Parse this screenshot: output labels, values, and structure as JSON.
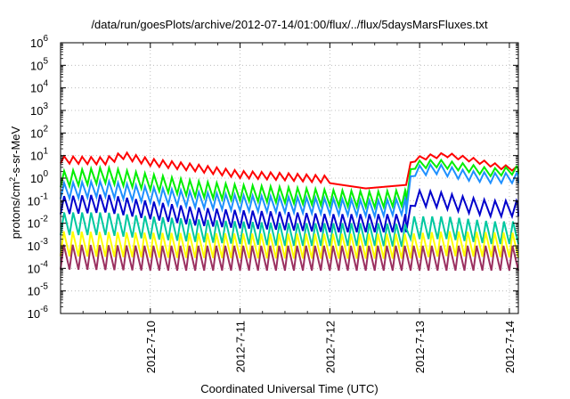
{
  "chart_data": {
    "type": "line",
    "title": "/data/run/goesPlots/archive/2012-07-14/01:00/flux/../flux/5daysMarsFluxes.txt",
    "xlabel": "Coordinated Universal Time (UTC)",
    "ylabel_main": "protons/cm",
    "ylabel_sup": "2",
    "ylabel_rest": "-s-sr-MeV",
    "yscale": "log",
    "ylim_exp": [
      -6,
      6
    ],
    "ytick_exps": [
      -6,
      -5,
      -4,
      -3,
      -2,
      -1,
      0,
      1,
      2,
      3,
      4,
      5,
      6
    ],
    "ytick_base": "10",
    "xlim_days": [
      9.0,
      14.1
    ],
    "xticks": [
      {
        "day": 10,
        "label": "2012-7-10"
      },
      {
        "day": 11,
        "label": "2012-7-11"
      },
      {
        "day": 12,
        "label": "2012-7-12"
      },
      {
        "day": 13,
        "label": "2012-7-13"
      },
      {
        "day": 14,
        "label": "2012-7-14"
      }
    ],
    "grid": true,
    "series": [
      {
        "color": "#ff0000",
        "width": 2,
        "points": [
          [
            9.0,
            4.5
          ],
          [
            9.5,
            4.0
          ],
          [
            9.7,
            7.0
          ],
          [
            10.0,
            3.5
          ],
          [
            10.5,
            2.0
          ],
          [
            11.0,
            1.0
          ],
          [
            11.5,
            0.8
          ],
          [
            12.0,
            0.6
          ],
          [
            12.4,
            0.35
          ],
          [
            12.85,
            0.5
          ],
          [
            12.9,
            5.0
          ],
          [
            13.1,
            7.0
          ],
          [
            13.3,
            8.5
          ],
          [
            13.6,
            5.0
          ],
          [
            13.9,
            2.5
          ],
          [
            14.1,
            2.0
          ]
        ],
        "saw": [
          [
            9.0,
            12.0,
            0.32,
            0.1,
            0.04
          ],
          [
            12.95,
            14.1,
            0.2,
            0.12,
            0.05
          ]
        ]
      },
      {
        "color": "#00ee00",
        "width": 2,
        "points": [
          [
            9.0,
            0.4
          ],
          [
            9.5,
            0.6
          ],
          [
            10.0,
            0.3
          ],
          [
            10.5,
            0.15
          ],
          [
            11.0,
            0.1
          ],
          [
            11.5,
            0.08
          ],
          [
            12.0,
            0.06
          ],
          [
            12.5,
            0.05
          ],
          [
            12.85,
            0.06
          ],
          [
            12.9,
            2.5
          ],
          [
            13.2,
            3.0
          ],
          [
            13.5,
            2.0
          ],
          [
            13.8,
            1.2
          ],
          [
            14.1,
            1.5
          ]
        ],
        "saw": [
          [
            9.0,
            12.85,
            0.7,
            0.1,
            0.04
          ],
          [
            12.95,
            14.1,
            0.35,
            0.12,
            0.05
          ]
        ]
      },
      {
        "color": "#1e90ff",
        "width": 2,
        "points": [
          [
            9.0,
            0.12
          ],
          [
            9.5,
            0.15
          ],
          [
            10.0,
            0.08
          ],
          [
            10.5,
            0.05
          ],
          [
            11.0,
            0.035
          ],
          [
            11.5,
            0.03
          ],
          [
            12.0,
            0.025
          ],
          [
            12.5,
            0.02
          ],
          [
            12.85,
            0.025
          ],
          [
            12.9,
            1.2
          ],
          [
            13.2,
            1.5
          ],
          [
            13.5,
            0.8
          ],
          [
            13.8,
            0.6
          ],
          [
            14.1,
            0.6
          ]
        ],
        "saw": [
          [
            9.0,
            12.85,
            0.7,
            0.1,
            0.04
          ],
          [
            12.95,
            14.1,
            0.45,
            0.12,
            0.05
          ]
        ]
      },
      {
        "color": "#0000cc",
        "width": 2,
        "points": [
          [
            9.0,
            0.025
          ],
          [
            9.5,
            0.03
          ],
          [
            10.0,
            0.015
          ],
          [
            10.5,
            0.008
          ],
          [
            11.0,
            0.006
          ],
          [
            11.5,
            0.005
          ],
          [
            12.0,
            0.004
          ],
          [
            12.5,
            0.004
          ],
          [
            12.85,
            0.004
          ],
          [
            12.9,
            0.06
          ],
          [
            13.2,
            0.05
          ],
          [
            13.5,
            0.03
          ],
          [
            13.8,
            0.02
          ],
          [
            14.1,
            0.02
          ]
        ],
        "saw": [
          [
            9.0,
            12.85,
            0.8,
            0.1,
            0.04
          ],
          [
            12.95,
            14.1,
            0.7,
            0.12,
            0.05
          ]
        ]
      },
      {
        "color": "#00c8a0",
        "width": 2,
        "points": [
          [
            9.0,
            0.003
          ],
          [
            9.5,
            0.003
          ],
          [
            10.0,
            0.002
          ],
          [
            10.5,
            0.0015
          ],
          [
            11.0,
            0.0012
          ],
          [
            11.5,
            0.001
          ],
          [
            12.0,
            0.001
          ],
          [
            12.5,
            0.001
          ],
          [
            12.85,
            0.0009
          ],
          [
            12.9,
            0.002
          ],
          [
            13.3,
            0.002
          ],
          [
            13.8,
            0.0012
          ],
          [
            14.1,
            0.0012
          ]
        ],
        "saw": [
          [
            9.0,
            14.1,
            1.0,
            0.1,
            0.04
          ]
        ]
      },
      {
        "color": "#ffff00",
        "width": 2,
        "points": [
          [
            9.0,
            0.00035
          ],
          [
            10.0,
            0.0003
          ],
          [
            11.0,
            0.00028
          ],
          [
            12.0,
            0.00027
          ],
          [
            12.85,
            0.00027
          ],
          [
            13.3,
            0.00035
          ],
          [
            14.1,
            0.0003
          ]
        ],
        "saw": [
          [
            9.0,
            14.1,
            1.1,
            0.1,
            0.035
          ]
        ]
      },
      {
        "color": "#9b3060",
        "width": 2,
        "points": [
          [
            9.0,
            9e-05
          ],
          [
            10.0,
            8e-05
          ],
          [
            11.0,
            8e-05
          ],
          [
            12.0,
            8e-05
          ],
          [
            13.0,
            8e-05
          ],
          [
            14.1,
            8e-05
          ]
        ],
        "saw": [
          [
            9.0,
            14.1,
            1.1,
            0.1,
            0.035
          ]
        ]
      }
    ]
  }
}
